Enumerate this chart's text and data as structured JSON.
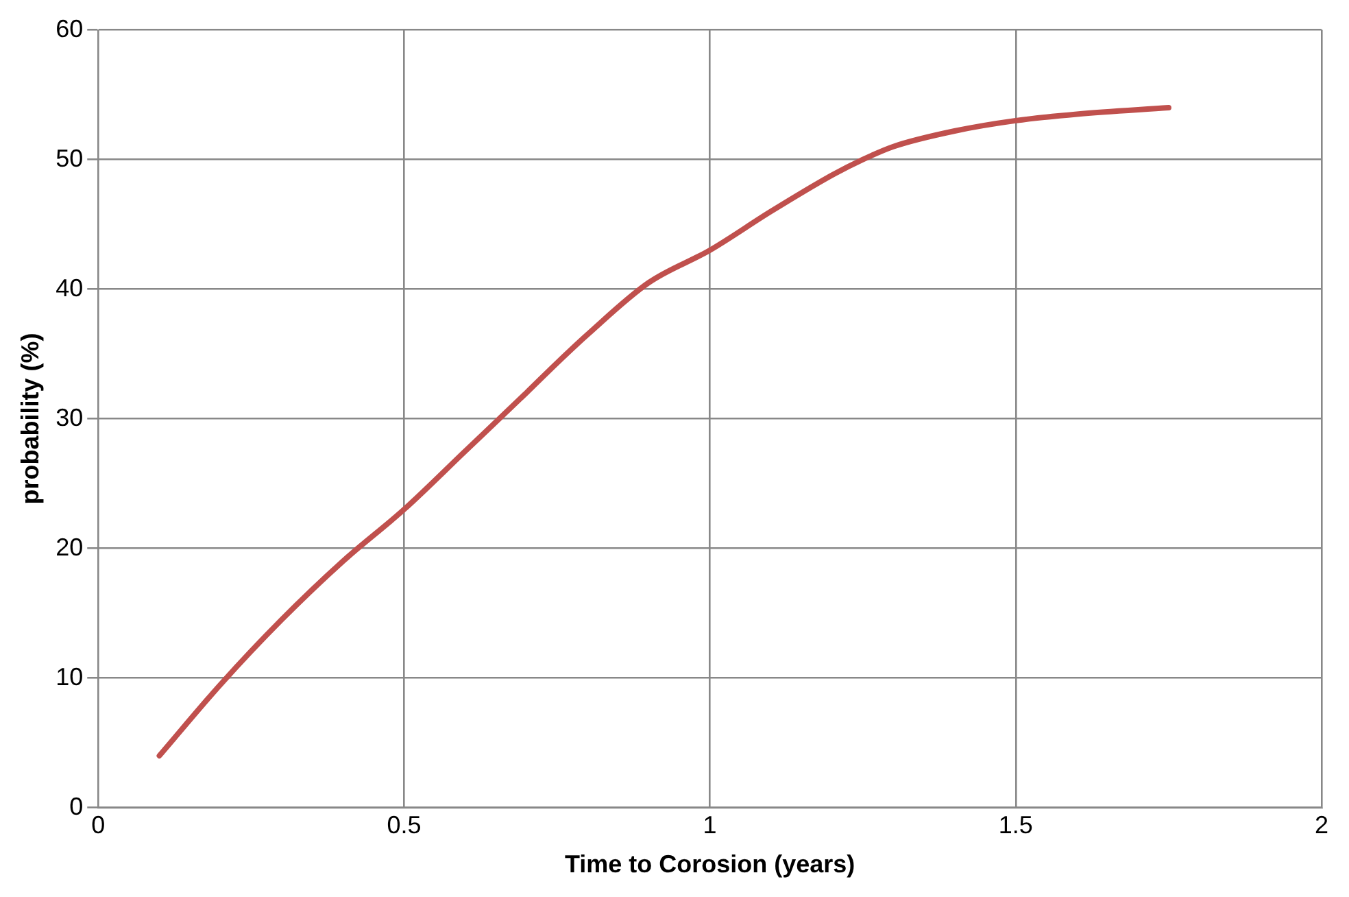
{
  "chart_data": {
    "type": "line",
    "xlabel": "Time to Corosion (years)",
    "ylabel": "probability (%)",
    "x": [
      0.1,
      0.2,
      0.3,
      0.4,
      0.5,
      0.6,
      0.7,
      0.75,
      0.8,
      0.9,
      1.0,
      1.1,
      1.2,
      1.25,
      1.3,
      1.4,
      1.5,
      1.6,
      1.75
    ],
    "series": [
      {
        "color": "#c0504d",
        "values": [
          4,
          9.5,
          14.5,
          19,
          23,
          27.5,
          32,
          34.3,
          36.5,
          40.5,
          43,
          46,
          48.8,
          50,
          51,
          52.2,
          53,
          53.5,
          54
        ]
      }
    ],
    "xlim": [
      0,
      2
    ],
    "xticks": [
      0,
      0.5,
      1,
      1.5,
      2
    ],
    "ylim": [
      0,
      60
    ],
    "yticks": [
      0,
      10,
      20,
      30,
      40,
      50,
      60
    ],
    "grid": true,
    "legend": false,
    "marker": "none",
    "line_style": "solid"
  }
}
